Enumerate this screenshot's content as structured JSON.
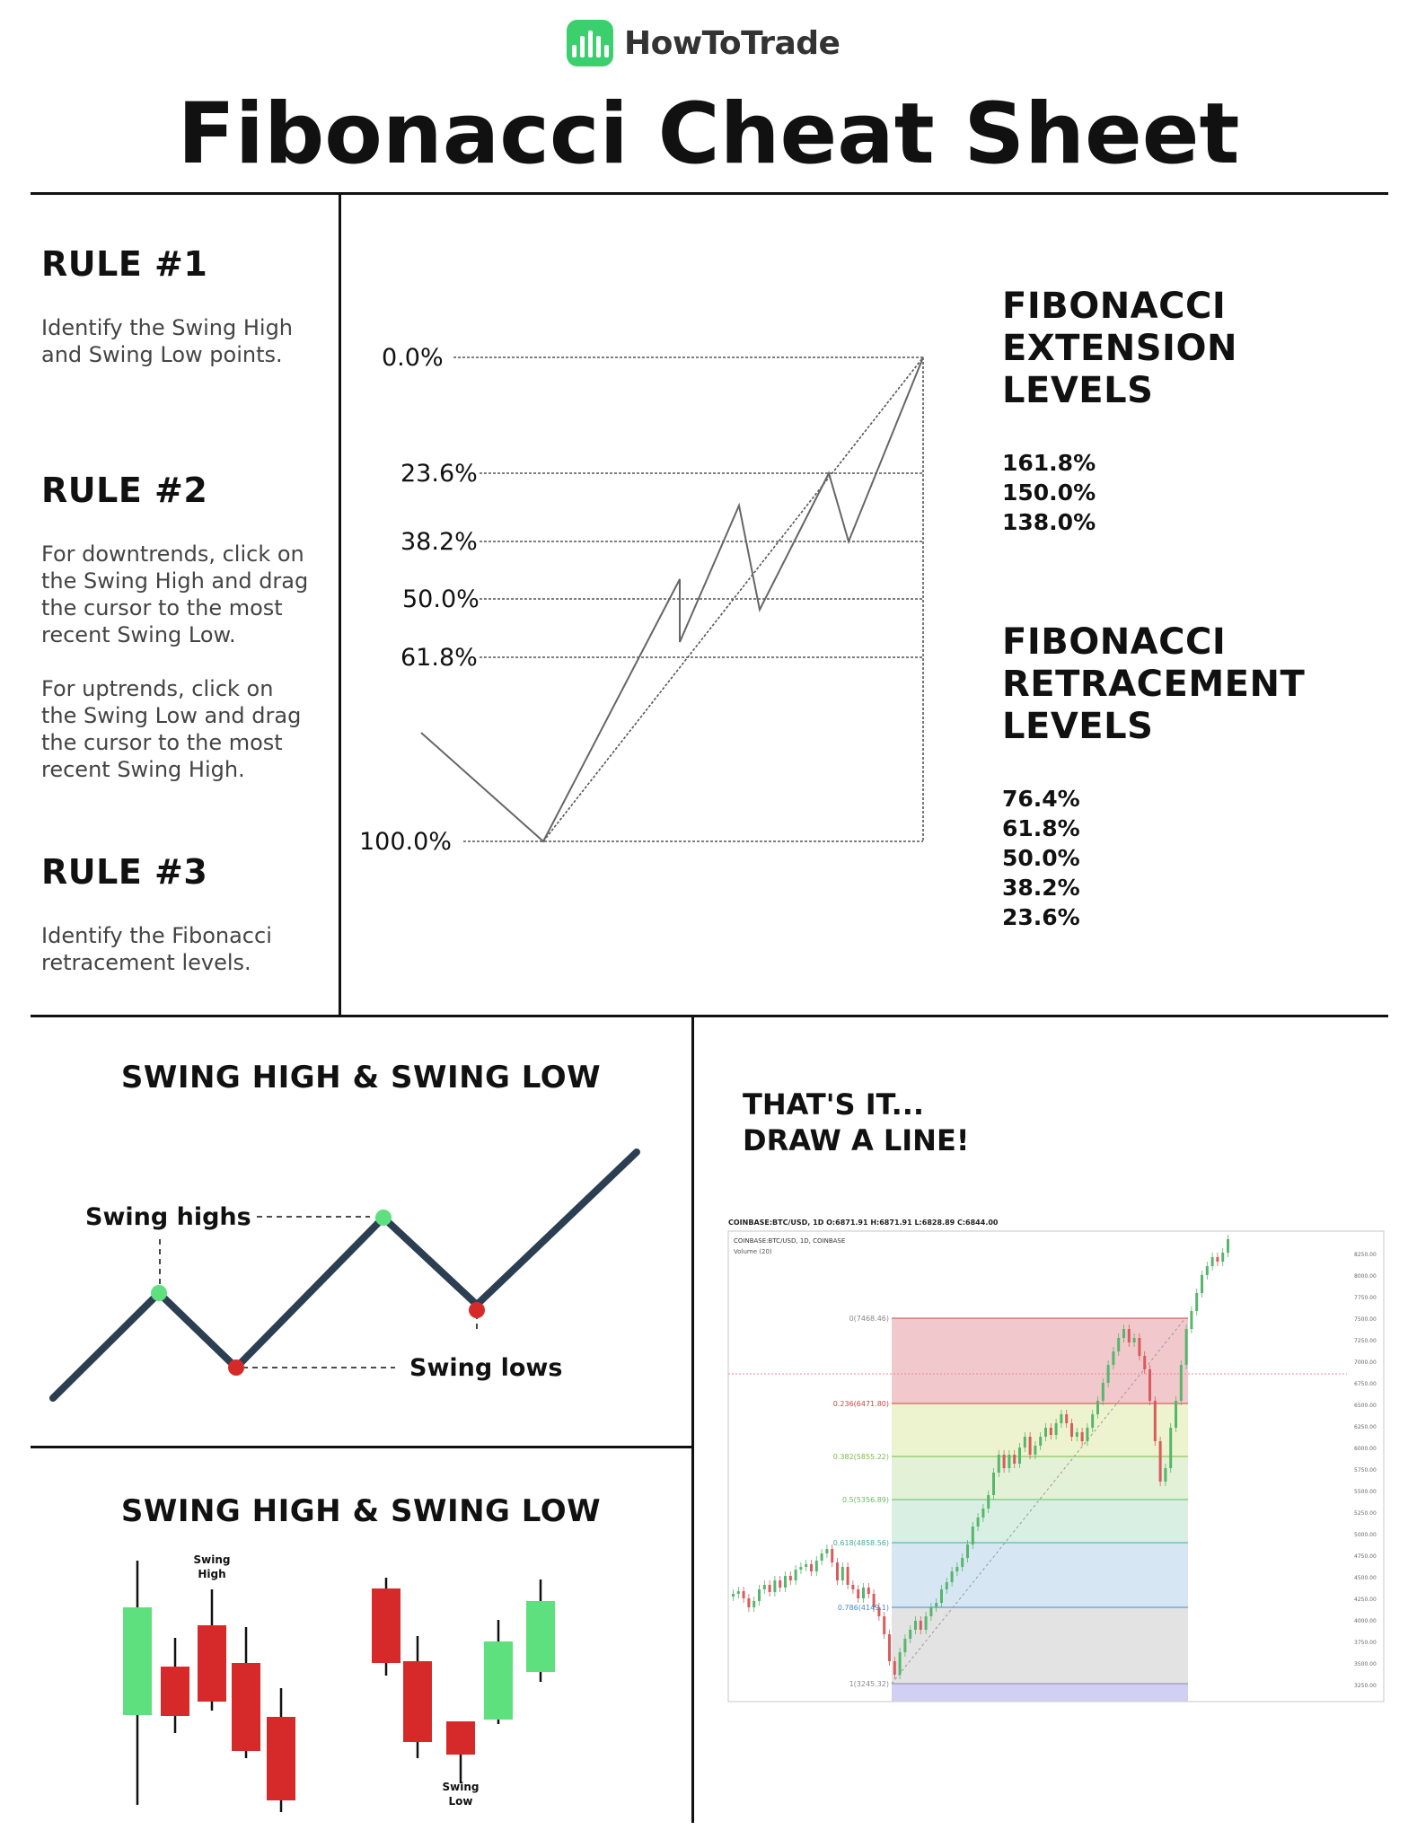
{
  "brand": {
    "name": "HowToTrade",
    "logo_color": "#3ccf6e"
  },
  "title": "Fibonacci Cheat Sheet",
  "rules": [
    {
      "title": "RULE #1",
      "text": "Identify the Swing High\nand Swing Low points."
    },
    {
      "title": "RULE #2",
      "text": "For downtrends, click on\nthe Swing High and drag\nthe cursor to the most\nrecent Swing Low.\n\nFor uptrends, click on\nthe Swing Low and drag\nthe cursor to the most\nrecent Swing High."
    },
    {
      "title": "RULE #3",
      "text": "Identify the Fibonacci\nretracement levels."
    }
  ],
  "fib_diagram": {
    "levels": [
      "0.0%",
      "23.6%",
      "38.2%",
      "50.0%",
      "61.8%",
      "100.0%"
    ]
  },
  "extension": {
    "title": "FIBONACCI\nEXTENSION\nLEVELS",
    "levels": [
      "161.8%",
      "150.0%",
      "138.0%"
    ]
  },
  "retracement": {
    "title": "FIBONACCI\nRETRACEMENT\nLEVELS",
    "levels": [
      "76.4%",
      "61.8%",
      "50.0%",
      "38.2%",
      "23.6%"
    ]
  },
  "swing_line": {
    "title": "SWING HIGH & SWING LOW",
    "highs_label": "Swing highs",
    "lows_label": "Swing lows",
    "line_color": "#2b3e52",
    "high_color": "#5fe07e",
    "low_color": "#d62a2a"
  },
  "swing_candles": {
    "title": "SWING HIGH & SWING LOW",
    "high_label_1": "Swing",
    "high_label_2": "High",
    "low_label_1": "Swing",
    "low_label_2": "Low",
    "up_color": "#5fe07e",
    "down_color": "#d62a2a"
  },
  "draw": {
    "title_1": "THAT'S IT...",
    "title_2": "DRAW A LINE!",
    "chart_header": "COINBASE:BTC/USD, 1D  O:6871.91 H:6871.91 L:6828.89 C:6844.00",
    "chart_sub_1": "COINBASE:BTC/USD, 1D, COINBASE",
    "chart_sub_2": "Volume (20)",
    "fib_labels": [
      "0(7468.46)",
      "0.236(6471.80)",
      "0.382(5855.22)",
      "0.5(5356.89)",
      "0.618(4858.56)",
      "0.786(4149.1)",
      "1(3245.32)"
    ],
    "price_ticks": [
      "8250.00",
      "8000.00",
      "7750.00",
      "7500.00",
      "7250.00",
      "7000.00",
      "6750.00",
      "6500.00",
      "6250.00",
      "6000.00",
      "5750.00",
      "5500.00",
      "5250.00",
      "5000.00",
      "4750.00",
      "4500.00",
      "4250.00",
      "4000.00",
      "3750.00",
      "3500.00",
      "3250.00"
    ],
    "zone_colors": [
      "#f1c9cc",
      "#eef3cf",
      "#e3f1d6",
      "#d9efe4",
      "#d6e7f3",
      "#e3e3e3",
      "#d1d0f2"
    ]
  }
}
